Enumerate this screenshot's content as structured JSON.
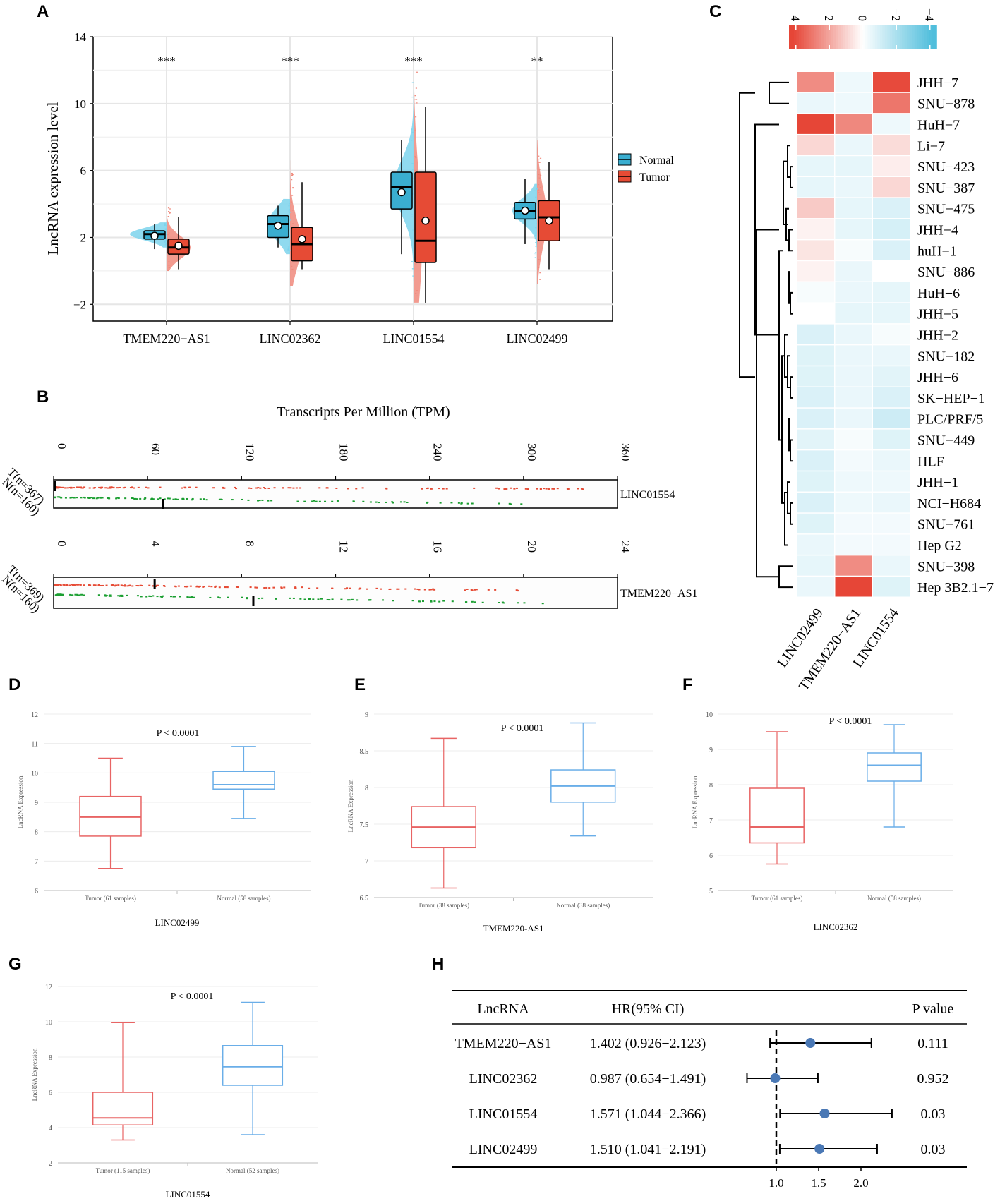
{
  "panel_labels": {
    "a": "A",
    "b": "B",
    "c": "C",
    "d": "D",
    "e": "E",
    "f": "F",
    "g": "G",
    "h": "H"
  },
  "colors": {
    "normal": "#3aaed0",
    "tumor": "#e64b35",
    "normal_light": "#7dd3ec",
    "tumor_light": "#f08a7c",
    "green": "#1a9e30",
    "hr_point": "#4a78b5",
    "box_red": "#e86464",
    "box_blue": "#6aaee8"
  },
  "chart_data": [
    {
      "id": "A",
      "type": "boxplot",
      "ylabel": "LncRNA expression level",
      "ylim": [
        -3,
        14
      ],
      "yticks": [
        "14",
        "10",
        "6",
        "2",
        "−2"
      ],
      "ytick_values": [
        14,
        10,
        6,
        2,
        -2
      ],
      "legend": [
        "Normal",
        "Tumor"
      ],
      "categories": [
        "TMEM220−AS1",
        "LINC02362",
        "LINC01554",
        "LINC02499"
      ],
      "significance": [
        "***",
        "***",
        "***",
        "**"
      ],
      "series": [
        {
          "name": "Normal",
          "boxes": [
            {
              "min": 1.3,
              "q1": 1.9,
              "median": 2.2,
              "q3": 2.4,
              "max": 2.8,
              "mean": 2.1
            },
            {
              "min": 1.4,
              "q1": 2.0,
              "median": 2.8,
              "q3": 3.3,
              "max": 3.9,
              "mean": 2.7
            },
            {
              "min": 1.0,
              "q1": 3.7,
              "median": 5.0,
              "q3": 5.9,
              "max": 7.8,
              "mean": 4.7
            },
            {
              "min": 1.6,
              "q1": 3.1,
              "median": 3.6,
              "q3": 4.1,
              "max": 5.5,
              "mean": 3.6
            }
          ]
        },
        {
          "name": "Tumor",
          "boxes": [
            {
              "min": 0.1,
              "q1": 1.0,
              "median": 1.4,
              "q3": 1.9,
              "max": 3.2,
              "mean": 1.5
            },
            {
              "min": 0.1,
              "q1": 0.6,
              "median": 1.6,
              "q3": 2.6,
              "max": 5.3,
              "mean": 1.9
            },
            {
              "min": -1.9,
              "q1": 0.5,
              "median": 1.8,
              "q3": 5.9,
              "max": 9.8,
              "mean": 3.0
            },
            {
              "min": 0.1,
              "q1": 1.8,
              "median": 3.2,
              "q3": 4.2,
              "max": 6.5,
              "mean": 3.0
            }
          ]
        }
      ]
    },
    {
      "id": "B",
      "type": "strip",
      "title": "Transcripts Per Million (TPM)",
      "rows": [
        {
          "gene": "LINC01554",
          "t_label": "T(n=367)",
          "n_label": "N(n=160)",
          "xlim": [
            0,
            360
          ],
          "ticks": [
            "0",
            "60",
            "120",
            "180",
            "240",
            "300",
            "360"
          ],
          "tick_values": [
            0,
            60,
            120,
            180,
            240,
            300,
            360
          ],
          "t_median": 1,
          "n_median": 70,
          "t_max": 346,
          "n_max": 305
        },
        {
          "gene": "TMEM220−AS1",
          "t_label": "T(n=369)",
          "n_label": "N(n=160)",
          "xlim": [
            0,
            24
          ],
          "ticks": [
            "0",
            "4",
            "8",
            "12",
            "16",
            "20",
            "24"
          ],
          "tick_values": [
            0,
            4,
            8,
            12,
            16,
            20,
            24
          ],
          "t_median": 4.3,
          "n_median": 8.5,
          "t_max": 20.3,
          "n_max": 20.8
        }
      ]
    },
    {
      "id": "C",
      "type": "heatmap",
      "scale_labels": [
        "4",
        "2",
        "0",
        "−2",
        "−4"
      ],
      "columns": [
        "LINC02499",
        "TMEM220−AS1",
        "LINC01554"
      ],
      "rows": [
        "JHH−7",
        "SNU−878",
        "HuH−7",
        "Li−7",
        "SNU−423",
        "SNU−387",
        "SNU−475",
        "JHH−4",
        "huH−1",
        "SNU−886",
        "HuH−6",
        "JHH−5",
        "JHH−2",
        "SNU−182",
        "JHH−6",
        "SK−HEP−1",
        "PLC/PRF/5",
        "SNU−449",
        "HLF",
        "JHH−1",
        "NCI−H684",
        "SNU−761",
        "Hep G2",
        "SNU−398",
        "Hep 3B2.1−7"
      ],
      "values": [
        [
          2.6,
          -0.4,
          4.1
        ],
        [
          -0.5,
          -0.4,
          3.1
        ],
        [
          4.2,
          2.7,
          -0.4
        ],
        [
          0.9,
          -0.5,
          0.8
        ],
        [
          -0.6,
          -0.6,
          0.4
        ],
        [
          -0.6,
          -0.5,
          0.9
        ],
        [
          1.2,
          -0.6,
          -0.9
        ],
        [
          0.3,
          -0.6,
          -1.0
        ],
        [
          0.6,
          -0.2,
          -0.9
        ],
        [
          0.3,
          -0.5,
          0.0
        ],
        [
          -0.2,
          -0.5,
          -0.6
        ],
        [
          0.0,
          -0.6,
          -0.6
        ],
        [
          -0.9,
          -0.5,
          -0.2
        ],
        [
          -0.8,
          -0.5,
          -0.5
        ],
        [
          -0.8,
          -0.5,
          -0.7
        ],
        [
          -0.9,
          -0.5,
          -0.9
        ],
        [
          -0.9,
          -0.5,
          -1.2
        ],
        [
          -0.7,
          -0.2,
          -0.8
        ],
        [
          -0.9,
          -0.3,
          -0.5
        ],
        [
          -0.8,
          -0.4,
          -0.4
        ],
        [
          -0.9,
          -0.4,
          -0.5
        ],
        [
          -0.8,
          -0.3,
          -0.3
        ],
        [
          -0.5,
          -0.3,
          -0.3
        ],
        [
          -0.6,
          2.6,
          -0.5
        ],
        [
          -0.5,
          4.2,
          -0.8
        ]
      ]
    },
    {
      "id": "D",
      "type": "boxplot",
      "gene": "LINC02499",
      "ylabel": "LncRNA Expression",
      "pvalue": "P < 0.0001",
      "ylim": [
        6,
        12
      ],
      "yticks": [
        "12",
        "11",
        "10",
        "9",
        "8",
        "7",
        "6"
      ],
      "ytick_values": [
        12,
        11,
        10,
        9,
        8,
        7,
        6
      ],
      "groups": [
        {
          "label": "Tumor (61 samples)",
          "min": 6.75,
          "q1": 7.85,
          "median": 8.5,
          "q3": 9.2,
          "max": 10.5,
          "color": "tumor"
        },
        {
          "label": "Normal (58 samples)",
          "min": 8.45,
          "q1": 9.45,
          "median": 9.6,
          "q3": 10.05,
          "max": 10.9,
          "color": "normal"
        }
      ]
    },
    {
      "id": "E",
      "type": "boxplot",
      "gene": "TMEM220-AS1",
      "ylabel": "LncRNA Expression",
      "pvalue": "P < 0.0001",
      "ylim": [
        6.5,
        9
      ],
      "yticks": [
        "9",
        "8.5",
        "8",
        "7.5",
        "7",
        "6.5"
      ],
      "ytick_values": [
        9,
        8.5,
        8,
        7.5,
        7,
        6.5
      ],
      "groups": [
        {
          "label": "Tumor (38 samples)",
          "min": 6.63,
          "q1": 7.18,
          "median": 7.46,
          "q3": 7.74,
          "max": 8.67,
          "color": "tumor"
        },
        {
          "label": "Normal (38 samples)",
          "min": 7.34,
          "q1": 7.8,
          "median": 8.02,
          "q3": 8.24,
          "max": 8.88,
          "color": "normal"
        }
      ]
    },
    {
      "id": "F",
      "type": "boxplot",
      "gene": "LINC02362",
      "ylabel": "LncRNA Expression",
      "pvalue": "P < 0.0001",
      "ylim": [
        5,
        10
      ],
      "yticks": [
        "10",
        "9",
        "8",
        "7",
        "6",
        "5"
      ],
      "ytick_values": [
        10,
        9,
        8,
        7,
        6,
        5
      ],
      "groups": [
        {
          "label": "Tumor (61 samples)",
          "min": 5.75,
          "q1": 6.35,
          "median": 6.8,
          "q3": 7.9,
          "max": 9.5,
          "color": "tumor"
        },
        {
          "label": "Normal (58 samples)",
          "min": 6.8,
          "q1": 8.1,
          "median": 8.55,
          "q3": 8.9,
          "max": 9.7,
          "color": "normal"
        }
      ]
    },
    {
      "id": "G",
      "type": "boxplot",
      "gene": "LINC01554",
      "ylabel": "LncRNA Expression",
      "pvalue": "P < 0.0001",
      "ylim": [
        2,
        12
      ],
      "yticks": [
        "12",
        "10",
        "8",
        "6",
        "4",
        "2"
      ],
      "ytick_values": [
        12,
        10,
        8,
        6,
        4,
        2
      ],
      "groups": [
        {
          "label": "Tumor (115 samples)",
          "min": 3.3,
          "q1": 4.15,
          "median": 4.55,
          "q3": 6.0,
          "max": 9.95,
          "color": "tumor"
        },
        {
          "label": "Normal (52 samples)",
          "min": 3.6,
          "q1": 6.4,
          "median": 7.45,
          "q3": 8.65,
          "max": 11.1,
          "color": "normal"
        }
      ]
    },
    {
      "id": "H",
      "type": "forest",
      "headers": {
        "lncrna": "LncRNA",
        "hr": "HR(95% CI)",
        "p": "P value"
      },
      "rows": [
        {
          "lncrna": "TMEM220−AS1",
          "hr_text": "1.402 (0.926−2.123)",
          "p": "0.111",
          "hr": 1.402,
          "lo": 0.926,
          "hi": 2.123
        },
        {
          "lncrna": "LINC02362",
          "hr_text": "0.987 (0.654−1.491)",
          "p": "0.952",
          "hr": 0.987,
          "lo": 0.654,
          "hi": 1.491
        },
        {
          "lncrna": "LINC01554",
          "hr_text": "1.571 (1.044−2.366)",
          "p": "0.03",
          "hr": 1.571,
          "lo": 1.044,
          "hi": 2.366
        },
        {
          "lncrna": "LINC02499",
          "hr_text": "1.510 (1.041−2.191)",
          "p": "0.03",
          "hr": 1.51,
          "lo": 1.041,
          "hi": 2.191
        }
      ],
      "xticks": [
        "1.0",
        "1.5",
        "2.0"
      ],
      "xtick_values": [
        1.0,
        1.5,
        2.0
      ],
      "ref": 1.0
    }
  ]
}
